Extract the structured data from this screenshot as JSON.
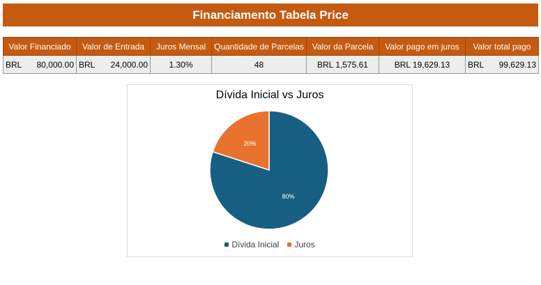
{
  "title": "Financiamento Tabela Price",
  "table": {
    "headers": [
      "Valor Financiado",
      "Valor de Entrada",
      "Juros Mensal",
      "Quantidade de Parcelas",
      "Valor da Parcela",
      "Valor pago em juros",
      "Valor total pago"
    ],
    "row": {
      "valor_financiado": {
        "currency": "BRL",
        "amount": "80,000.00"
      },
      "valor_entrada": {
        "currency": "BRL",
        "amount": "24,000.00"
      },
      "juros_mensal": "1.30%",
      "quantidade_parcelas": "48",
      "valor_parcela": "BRL 1,575.61",
      "valor_juros": "BRL 19,629.13",
      "valor_total": {
        "currency": "BRL",
        "amount": "99,629.13"
      }
    }
  },
  "chart_data": {
    "type": "pie",
    "title": "Dívida Inicial vs Juros",
    "categories": [
      "Dívida Inicial",
      "Juros"
    ],
    "values": [
      80,
      20
    ],
    "labels": [
      "80%",
      "20%"
    ],
    "colors": [
      "#175e83",
      "#e8722e"
    ],
    "legend": "bottom"
  }
}
